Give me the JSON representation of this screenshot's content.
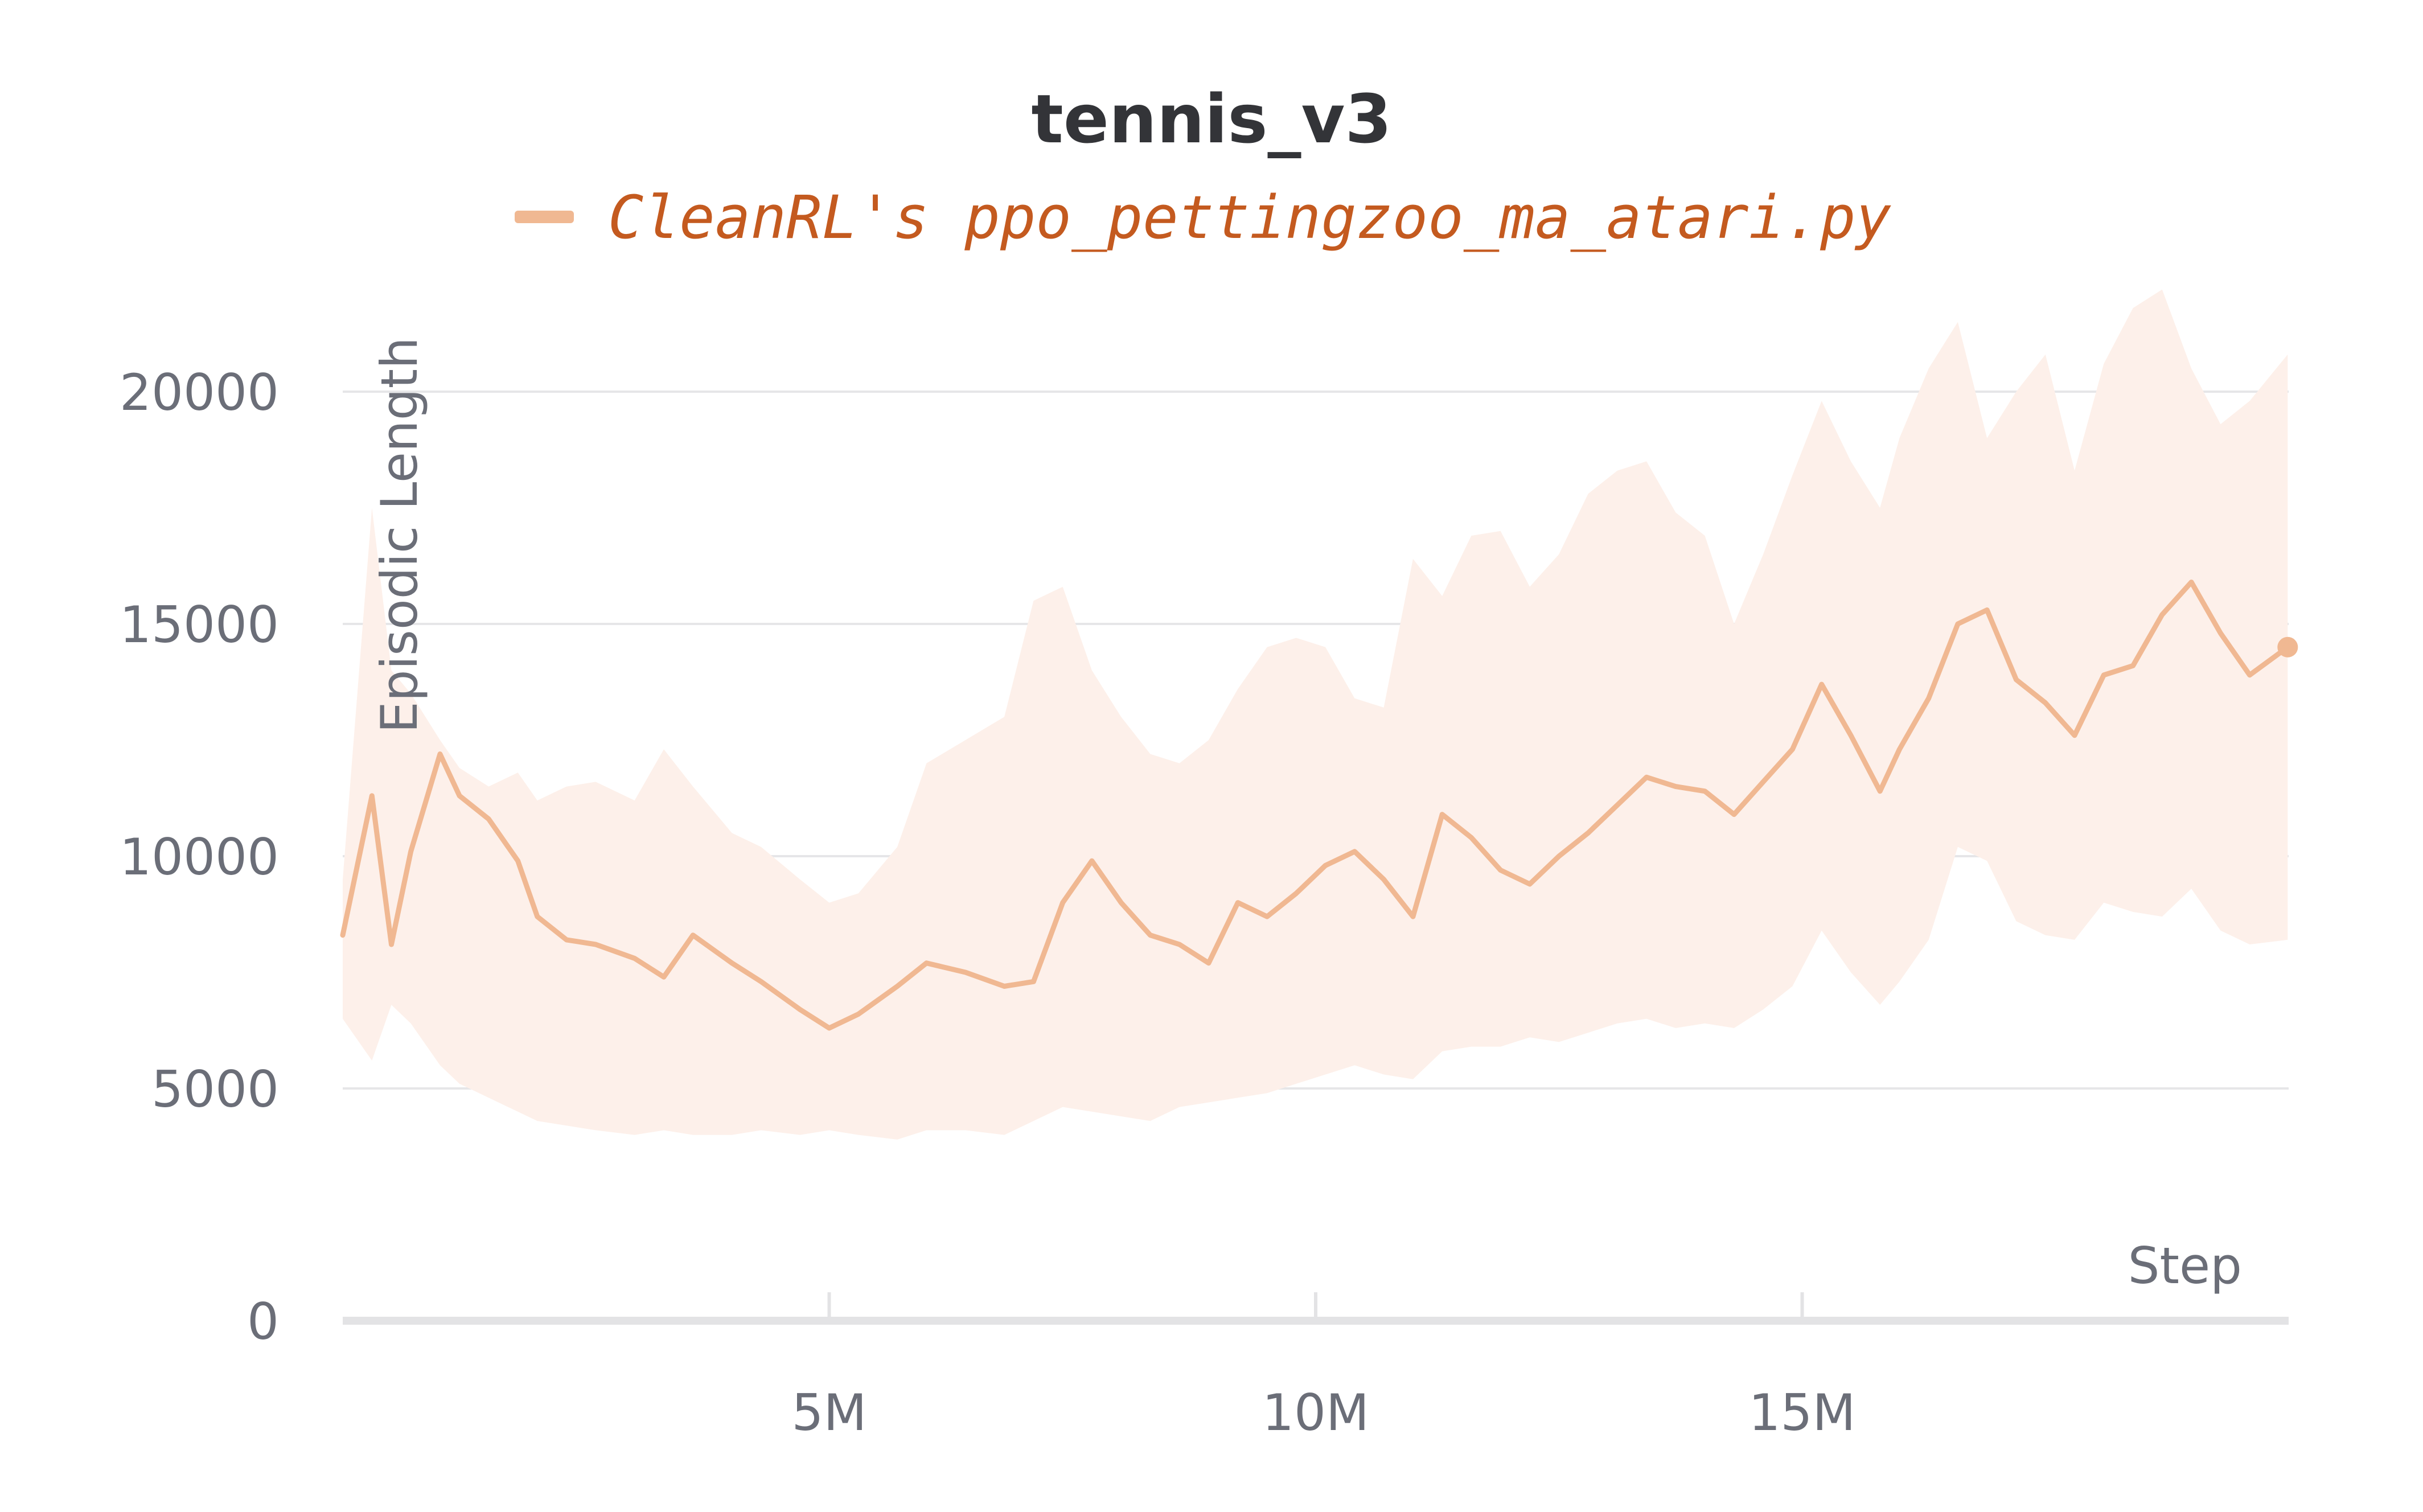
{
  "chart_data": {
    "type": "line",
    "title": "tennis_v3",
    "legend": {
      "position": "top-center"
    },
    "xlabel": "Step",
    "ylabel": "Episodic Length",
    "xlim": [
      0,
      20000000
    ],
    "ylim": [
      0,
      21500
    ],
    "grid": true,
    "x_ticks": [
      {
        "value": 5000000,
        "label": "5M"
      },
      {
        "value": 10000000,
        "label": "10M"
      },
      {
        "value": 15000000,
        "label": "15M"
      }
    ],
    "y_ticks": [
      {
        "value": 0,
        "label": "0"
      },
      {
        "value": 5000,
        "label": "5000"
      },
      {
        "value": 10000,
        "label": "10000"
      },
      {
        "value": 15000,
        "label": "15000"
      },
      {
        "value": 20000,
        "label": "20000"
      }
    ],
    "series": [
      {
        "name": "CleanRL's ppo_pettingzoo_ma_atari.py",
        "color": "#f0b892",
        "band_color": "#fdf0ea",
        "x": [
          0,
          300000,
          500000,
          700000,
          1000000,
          1200000,
          1500000,
          1800000,
          2000000,
          2300000,
          2600000,
          3000000,
          3300000,
          3600000,
          4000000,
          4300000,
          4700000,
          5000000,
          5300000,
          5700000,
          6000000,
          6400000,
          6800000,
          7100000,
          7400000,
          7700000,
          8000000,
          8300000,
          8600000,
          8900000,
          9200000,
          9500000,
          9800000,
          10100000,
          10400000,
          10700000,
          11000000,
          11300000,
          11600000,
          11900000,
          12200000,
          12500000,
          12800000,
          13100000,
          13400000,
          13700000,
          14000000,
          14300000,
          14600000,
          14900000,
          15200000,
          15500000,
          15800000,
          16000000,
          16300000,
          16600000,
          16900000,
          17200000,
          17500000,
          17800000,
          18100000,
          18400000,
          18700000,
          19000000,
          19300000,
          19600000,
          19990000
        ],
        "y": [
          8300,
          11300,
          8100,
          10100,
          12200,
          11300,
          10800,
          9900,
          8700,
          8200,
          8100,
          7800,
          7400,
          8300,
          7700,
          7300,
          6700,
          6300,
          6600,
          7200,
          7700,
          7500,
          7200,
          7300,
          9000,
          9900,
          9000,
          8300,
          8100,
          7700,
          9000,
          8700,
          9200,
          9800,
          10100,
          9500,
          8700,
          10900,
          10400,
          9700,
          9400,
          10000,
          10500,
          11100,
          11700,
          11500,
          11400,
          10900,
          11600,
          12300,
          13700,
          12600,
          11400,
          12300,
          13400,
          15000,
          15300,
          13800,
          13300,
          12600,
          13900,
          14100,
          15200,
          15900,
          14800,
          13900,
          14500
        ],
        "y_lower": [
          6500,
          5600,
          6800,
          6400,
          5500,
          5100,
          4800,
          4500,
          4300,
          4200,
          4100,
          4000,
          4100,
          4000,
          4000,
          4100,
          4000,
          4100,
          4000,
          3900,
          4100,
          4100,
          4000,
          4300,
          4600,
          4500,
          4400,
          4300,
          4600,
          4700,
          4800,
          4900,
          5100,
          5300,
          5500,
          5300,
          5200,
          5800,
          5900,
          5900,
          6100,
          6000,
          6200,
          6400,
          6500,
          6300,
          6400,
          6300,
          6700,
          7200,
          8400,
          7500,
          6800,
          7300,
          8200,
          10200,
          9900,
          8600,
          8300,
          8200,
          9000,
          8800,
          8700,
          9300,
          8400,
          8100,
          8200
        ],
        "y_upper": [
          9500,
          17500,
          14000,
          13500,
          12500,
          11900,
          11500,
          11800,
          11200,
          11500,
          11600,
          11200,
          12300,
          11500,
          10500,
          10200,
          9500,
          9000,
          9200,
          10200,
          12000,
          12500,
          13000,
          15500,
          15800,
          14000,
          13000,
          12200,
          12000,
          12500,
          13600,
          14500,
          14700,
          14500,
          13400,
          13200,
          16400,
          15600,
          16900,
          17000,
          15800,
          16500,
          17800,
          18300,
          18500,
          17400,
          16900,
          15000,
          16500,
          18200,
          19800,
          18500,
          17500,
          19000,
          20500,
          21500,
          19000,
          20000,
          20800,
          18300,
          20600,
          21800,
          22200,
          20500,
          19300,
          19800,
          20800
        ]
      }
    ]
  }
}
